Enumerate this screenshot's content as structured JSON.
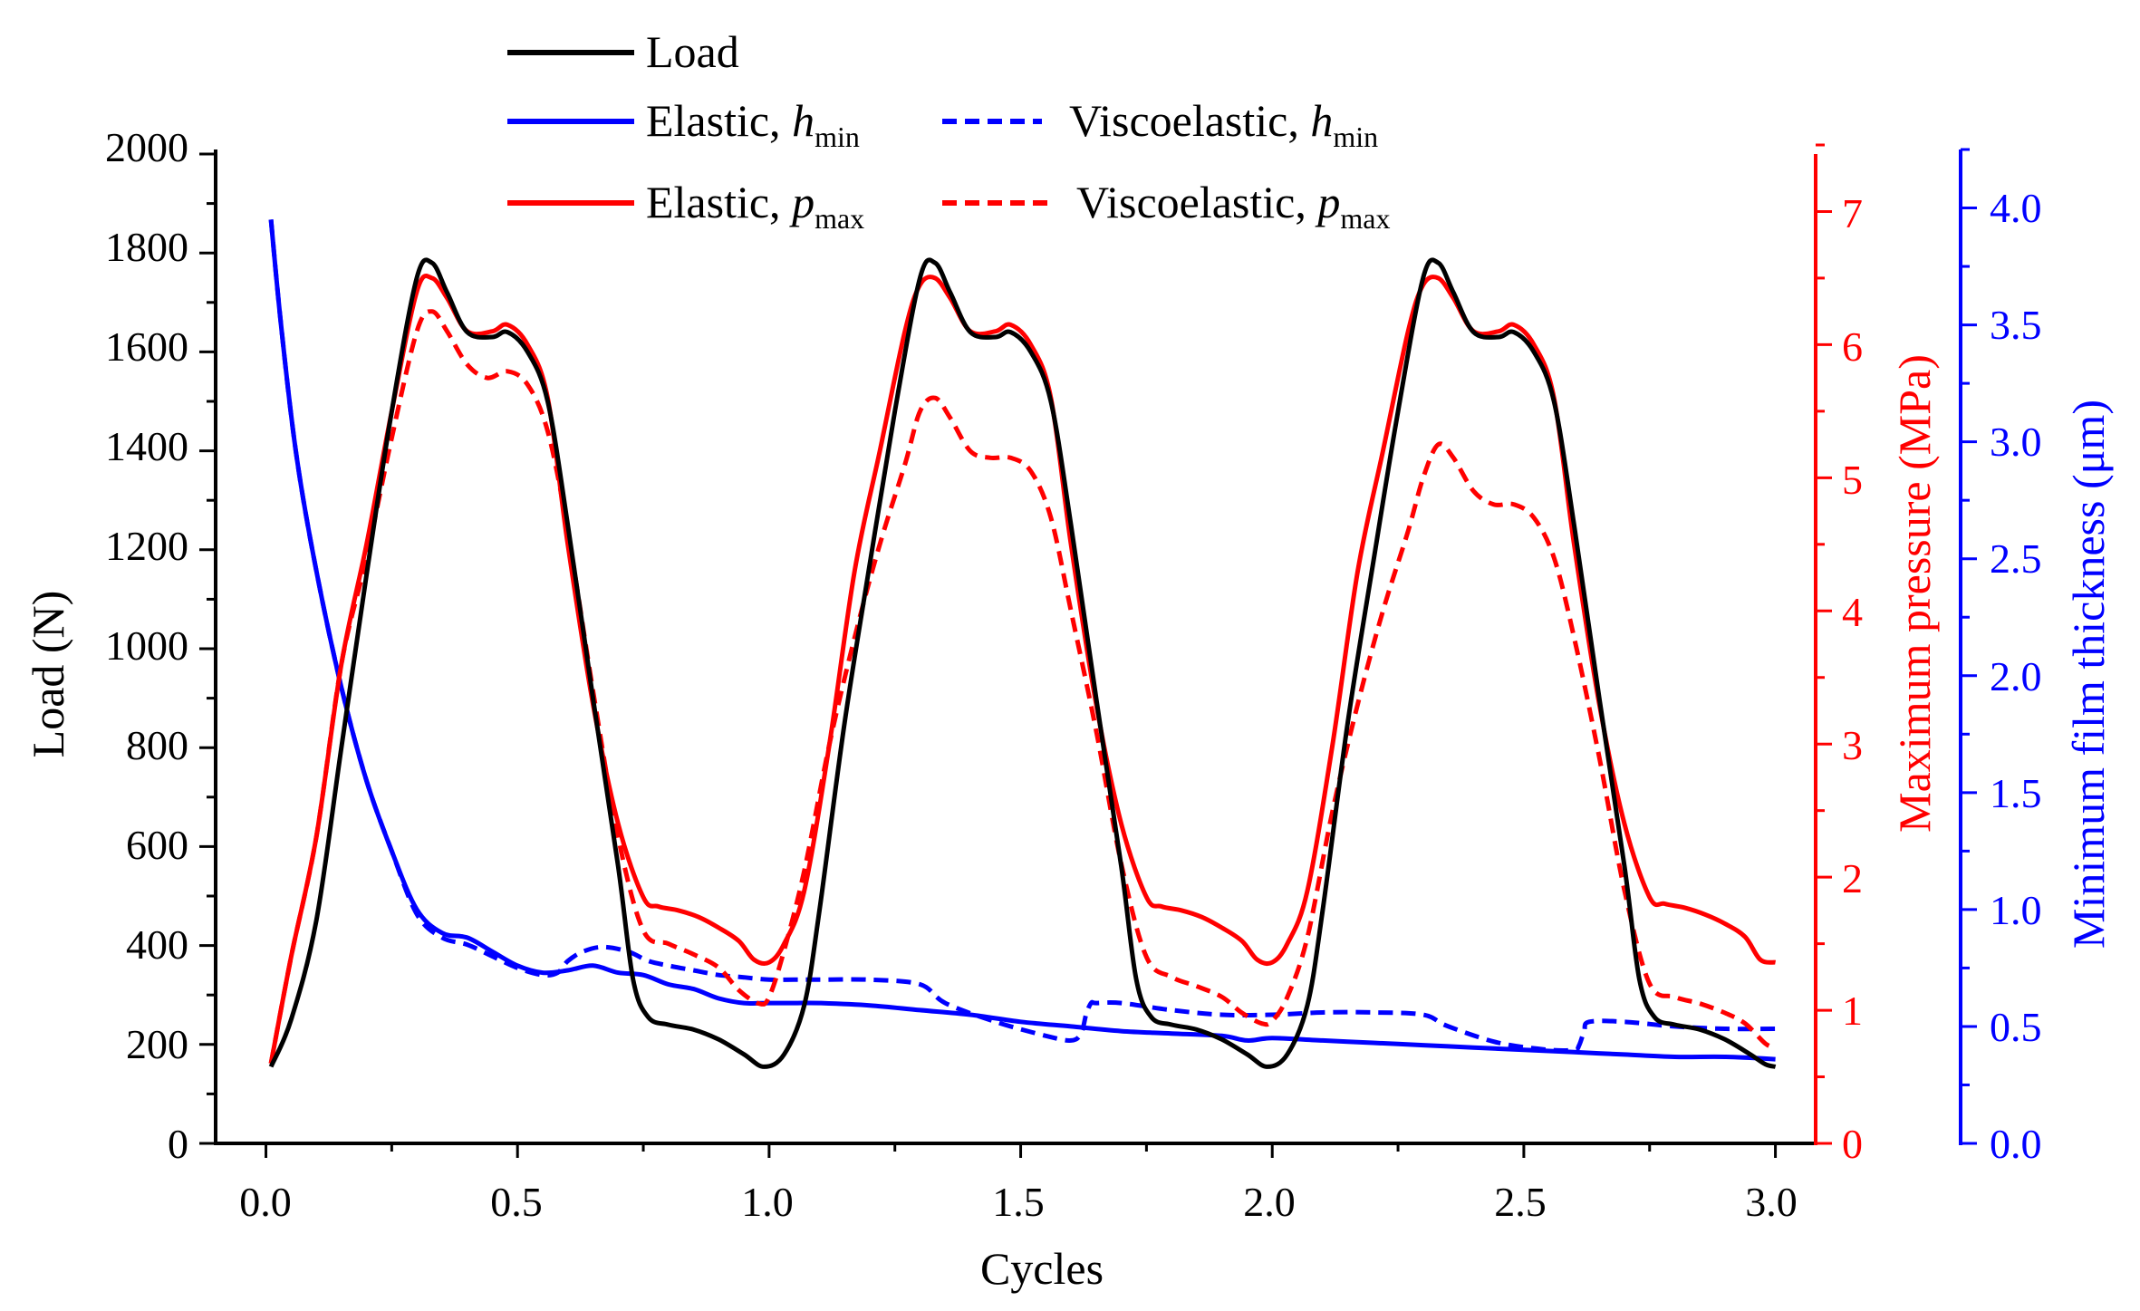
{
  "chart_data": {
    "type": "line",
    "xlabel": "Cycles",
    "xlim": [
      -0.1,
      3.08
    ],
    "x_ticks": [
      "0.0",
      "0.5",
      "1.0",
      "1.5",
      "2.0",
      "2.5",
      "3.0"
    ],
    "x_tick_values": [
      0,
      0.5,
      1.0,
      1.5,
      2.0,
      2.5,
      3.0
    ],
    "axes": {
      "load": {
        "label": "Load (N)",
        "min": 0,
        "max": 2000,
        "ticks": [
          "0",
          "200",
          "400",
          "600",
          "800",
          "1000",
          "1200",
          "1400",
          "1600",
          "1800",
          "2000"
        ],
        "tick_values": [
          0,
          200,
          400,
          600,
          800,
          1000,
          1200,
          1400,
          1600,
          1800,
          2000
        ],
        "color": "#000000"
      },
      "pressure": {
        "label": "Maximum pressure (MPa)",
        "min": 0,
        "max": 7.5,
        "ticks": [
          "0",
          "1",
          "2",
          "3",
          "4",
          "5",
          "6",
          "7"
        ],
        "tick_values": [
          0,
          1,
          2,
          3,
          4,
          5,
          6,
          7
        ],
        "color": "#ff0000"
      },
      "thickness": {
        "label": "Minimum film thickness (μm)",
        "min": 0,
        "max": 4.25,
        "ticks": [
          "0.0",
          "0.5",
          "1.0",
          "1.5",
          "2.0",
          "2.5",
          "3.0",
          "3.5",
          "4.0"
        ],
        "tick_values": [
          0,
          0.5,
          1.0,
          1.5,
          2.0,
          2.5,
          3.0,
          3.5,
          4.0
        ],
        "color": "#0000ff"
      }
    },
    "legend": {
      "position": "top",
      "entries": [
        {
          "key": "load",
          "label": "Load",
          "sub": ""
        },
        {
          "key": "elastic_h",
          "label": "Elastic, ",
          "italic": "h",
          "sub": "min"
        },
        {
          "key": "visco_h",
          "label": "Viscoelastic, ",
          "italic": "h",
          "sub": "min"
        },
        {
          "key": "elastic_p",
          "label": "Elastic, ",
          "italic": "p",
          "sub": "max"
        },
        {
          "key": "visco_p",
          "label": "Viscoelastic, ",
          "italic": "p",
          "sub": "max"
        }
      ]
    },
    "series": [
      {
        "key": "load",
        "name": "Load",
        "axis": "load",
        "color": "#000000",
        "dash": "solid",
        "x": [
          0.01,
          0.05,
          0.1,
          0.15,
          0.2,
          0.25,
          0.3,
          0.33,
          0.36,
          0.4,
          0.45,
          0.48,
          0.52,
          0.56,
          0.6,
          0.65,
          0.7,
          0.73,
          0.76,
          0.8,
          0.85,
          0.9,
          0.95,
          0.99,
          1.03,
          1.07,
          1.1,
          1.15,
          1.2,
          1.25,
          1.3,
          1.33,
          1.36,
          1.4,
          1.45,
          1.48,
          1.52,
          1.56,
          1.6,
          1.65,
          1.7,
          1.73,
          1.76,
          1.8,
          1.85,
          1.9,
          1.95,
          1.99,
          2.03,
          2.07,
          2.1,
          2.15,
          2.2,
          2.25,
          2.3,
          2.33,
          2.36,
          2.4,
          2.45,
          2.48,
          2.52,
          2.56,
          2.6,
          2.65,
          2.7,
          2.73,
          2.76,
          2.8,
          2.85,
          2.9,
          2.95,
          2.98,
          3.0
        ],
        "y": [
          155,
          250,
          450,
          800,
          1150,
          1480,
          1750,
          1780,
          1720,
          1640,
          1630,
          1640,
          1600,
          1500,
          1250,
          900,
          560,
          330,
          255,
          240,
          230,
          210,
          180,
          155,
          180,
          280,
          470,
          850,
          1170,
          1480,
          1750,
          1780,
          1720,
          1640,
          1630,
          1640,
          1600,
          1500,
          1250,
          900,
          560,
          330,
          255,
          240,
          230,
          210,
          180,
          155,
          180,
          280,
          470,
          850,
          1170,
          1480,
          1750,
          1780,
          1720,
          1640,
          1630,
          1640,
          1600,
          1500,
          1250,
          900,
          560,
          330,
          255,
          240,
          230,
          210,
          180,
          160,
          155
        ]
      },
      {
        "key": "elastic_p",
        "name": "Elastic, p_max",
        "axis": "pressure",
        "color": "#ff0000",
        "dash": "solid",
        "x": [
          0.01,
          0.05,
          0.1,
          0.15,
          0.2,
          0.25,
          0.3,
          0.33,
          0.36,
          0.4,
          0.45,
          0.48,
          0.52,
          0.56,
          0.6,
          0.65,
          0.7,
          0.75,
          0.78,
          0.82,
          0.86,
          0.9,
          0.94,
          0.97,
          1.0,
          1.03,
          1.07,
          1.12,
          1.17,
          1.22,
          1.27,
          1.3,
          1.33,
          1.36,
          1.4,
          1.45,
          1.48,
          1.52,
          1.56,
          1.6,
          1.65,
          1.7,
          1.75,
          1.78,
          1.82,
          1.86,
          1.9,
          1.94,
          1.97,
          2.0,
          2.03,
          2.07,
          2.12,
          2.17,
          2.22,
          2.27,
          2.3,
          2.33,
          2.36,
          2.4,
          2.45,
          2.48,
          2.52,
          2.56,
          2.6,
          2.65,
          2.7,
          2.75,
          2.78,
          2.82,
          2.86,
          2.9,
          2.94,
          2.97,
          3.0
        ],
        "y": [
          0.6,
          1.4,
          2.3,
          3.6,
          4.5,
          5.5,
          6.4,
          6.5,
          6.35,
          6.1,
          6.1,
          6.15,
          6.0,
          5.6,
          4.5,
          3.3,
          2.4,
          1.85,
          1.78,
          1.75,
          1.7,
          1.62,
          1.52,
          1.38,
          1.36,
          1.5,
          1.9,
          3.0,
          4.3,
          5.2,
          6.1,
          6.45,
          6.5,
          6.35,
          6.1,
          6.1,
          6.15,
          6.0,
          5.6,
          4.5,
          3.3,
          2.4,
          1.85,
          1.78,
          1.75,
          1.7,
          1.62,
          1.52,
          1.38,
          1.36,
          1.5,
          1.9,
          3.0,
          4.3,
          5.2,
          6.1,
          6.45,
          6.5,
          6.35,
          6.1,
          6.1,
          6.15,
          6.0,
          5.6,
          4.5,
          3.3,
          2.4,
          1.85,
          1.8,
          1.77,
          1.72,
          1.65,
          1.55,
          1.38,
          1.36
        ]
      },
      {
        "key": "visco_p",
        "name": "Viscoelastic, p_max",
        "axis": "pressure",
        "color": "#ff0000",
        "dash": "dashed",
        "x": [
          0.01,
          0.05,
          0.1,
          0.15,
          0.2,
          0.25,
          0.3,
          0.33,
          0.36,
          0.4,
          0.44,
          0.48,
          0.52,
          0.56,
          0.6,
          0.65,
          0.7,
          0.75,
          0.8,
          0.85,
          0.9,
          0.94,
          0.98,
          1.0,
          1.03,
          1.07,
          1.12,
          1.17,
          1.22,
          1.27,
          1.3,
          1.33,
          1.36,
          1.4,
          1.44,
          1.48,
          1.52,
          1.56,
          1.6,
          1.65,
          1.7,
          1.75,
          1.8,
          1.85,
          1.9,
          1.94,
          1.98,
          2.0,
          2.03,
          2.07,
          2.12,
          2.17,
          2.22,
          2.27,
          2.3,
          2.33,
          2.36,
          2.4,
          2.44,
          2.48,
          2.52,
          2.56,
          2.6,
          2.65,
          2.7,
          2.75,
          2.8,
          2.85,
          2.9,
          2.94,
          2.98,
          3.0
        ],
        "y": [
          0.6,
          1.4,
          2.3,
          3.6,
          4.4,
          5.3,
          6.1,
          6.25,
          6.1,
          5.85,
          5.75,
          5.8,
          5.7,
          5.35,
          4.6,
          3.4,
          2.3,
          1.6,
          1.5,
          1.42,
          1.32,
          1.15,
          1.05,
          1.1,
          1.45,
          2.05,
          3.0,
          3.8,
          4.5,
          5.1,
          5.5,
          5.6,
          5.45,
          5.2,
          5.15,
          5.15,
          5.05,
          4.7,
          4.0,
          3.1,
          2.1,
          1.4,
          1.25,
          1.18,
          1.1,
          0.98,
          0.9,
          0.92,
          1.1,
          1.55,
          2.5,
          3.3,
          4.0,
          4.6,
          5.0,
          5.25,
          5.15,
          4.9,
          4.8,
          4.8,
          4.7,
          4.4,
          3.8,
          2.9,
          1.9,
          1.2,
          1.1,
          1.05,
          0.98,
          0.9,
          0.75,
          0.72
        ]
      },
      {
        "key": "elastic_h",
        "name": "Elastic, h_min",
        "axis": "thickness",
        "color": "#0000ff",
        "dash": "solid",
        "x": [
          0.01,
          0.03,
          0.06,
          0.1,
          0.15,
          0.2,
          0.25,
          0.3,
          0.35,
          0.4,
          0.45,
          0.5,
          0.55,
          0.6,
          0.65,
          0.7,
          0.75,
          0.8,
          0.85,
          0.9,
          0.95,
          1.0,
          1.05,
          1.1,
          1.2,
          1.3,
          1.4,
          1.5,
          1.6,
          1.7,
          1.8,
          1.9,
          1.95,
          2.0,
          2.1,
          2.2,
          2.3,
          2.4,
          2.5,
          2.6,
          2.7,
          2.8,
          2.9,
          3.0
        ],
        "y": [
          3.95,
          3.5,
          2.95,
          2.45,
          1.95,
          1.55,
          1.25,
          1.0,
          0.9,
          0.88,
          0.82,
          0.76,
          0.73,
          0.74,
          0.76,
          0.73,
          0.72,
          0.68,
          0.66,
          0.62,
          0.6,
          0.6,
          0.6,
          0.6,
          0.59,
          0.57,
          0.55,
          0.52,
          0.5,
          0.48,
          0.47,
          0.46,
          0.44,
          0.45,
          0.44,
          0.43,
          0.42,
          0.41,
          0.4,
          0.39,
          0.38,
          0.37,
          0.37,
          0.36
        ]
      },
      {
        "key": "visco_h",
        "name": "Viscoelastic, h_min",
        "axis": "thickness",
        "color": "#0000ff",
        "dash": "dashed",
        "x": [
          0.01,
          0.03,
          0.06,
          0.1,
          0.15,
          0.2,
          0.25,
          0.3,
          0.35,
          0.4,
          0.45,
          0.5,
          0.55,
          0.58,
          0.6,
          0.63,
          0.67,
          0.72,
          0.76,
          0.8,
          0.85,
          0.9,
          0.95,
          1.0,
          1.05,
          1.1,
          1.2,
          1.3,
          1.35,
          1.45,
          1.55,
          1.6,
          1.62,
          1.63,
          1.64,
          1.65,
          1.7,
          1.8,
          1.9,
          2.0,
          2.1,
          2.2,
          2.3,
          2.35,
          2.45,
          2.55,
          2.6,
          2.61,
          2.62,
          2.63,
          2.7,
          2.8,
          2.9,
          3.0
        ],
        "y": [
          3.95,
          3.5,
          2.95,
          2.45,
          1.95,
          1.55,
          1.25,
          0.98,
          0.88,
          0.85,
          0.8,
          0.75,
          0.72,
          0.73,
          0.78,
          0.82,
          0.84,
          0.82,
          0.78,
          0.76,
          0.74,
          0.72,
          0.71,
          0.7,
          0.7,
          0.7,
          0.7,
          0.68,
          0.6,
          0.52,
          0.46,
          0.44,
          0.47,
          0.55,
          0.6,
          0.6,
          0.6,
          0.57,
          0.55,
          0.55,
          0.56,
          0.56,
          0.55,
          0.5,
          0.43,
          0.4,
          0.4,
          0.42,
          0.48,
          0.52,
          0.52,
          0.5,
          0.49,
          0.49
        ]
      }
    ]
  }
}
